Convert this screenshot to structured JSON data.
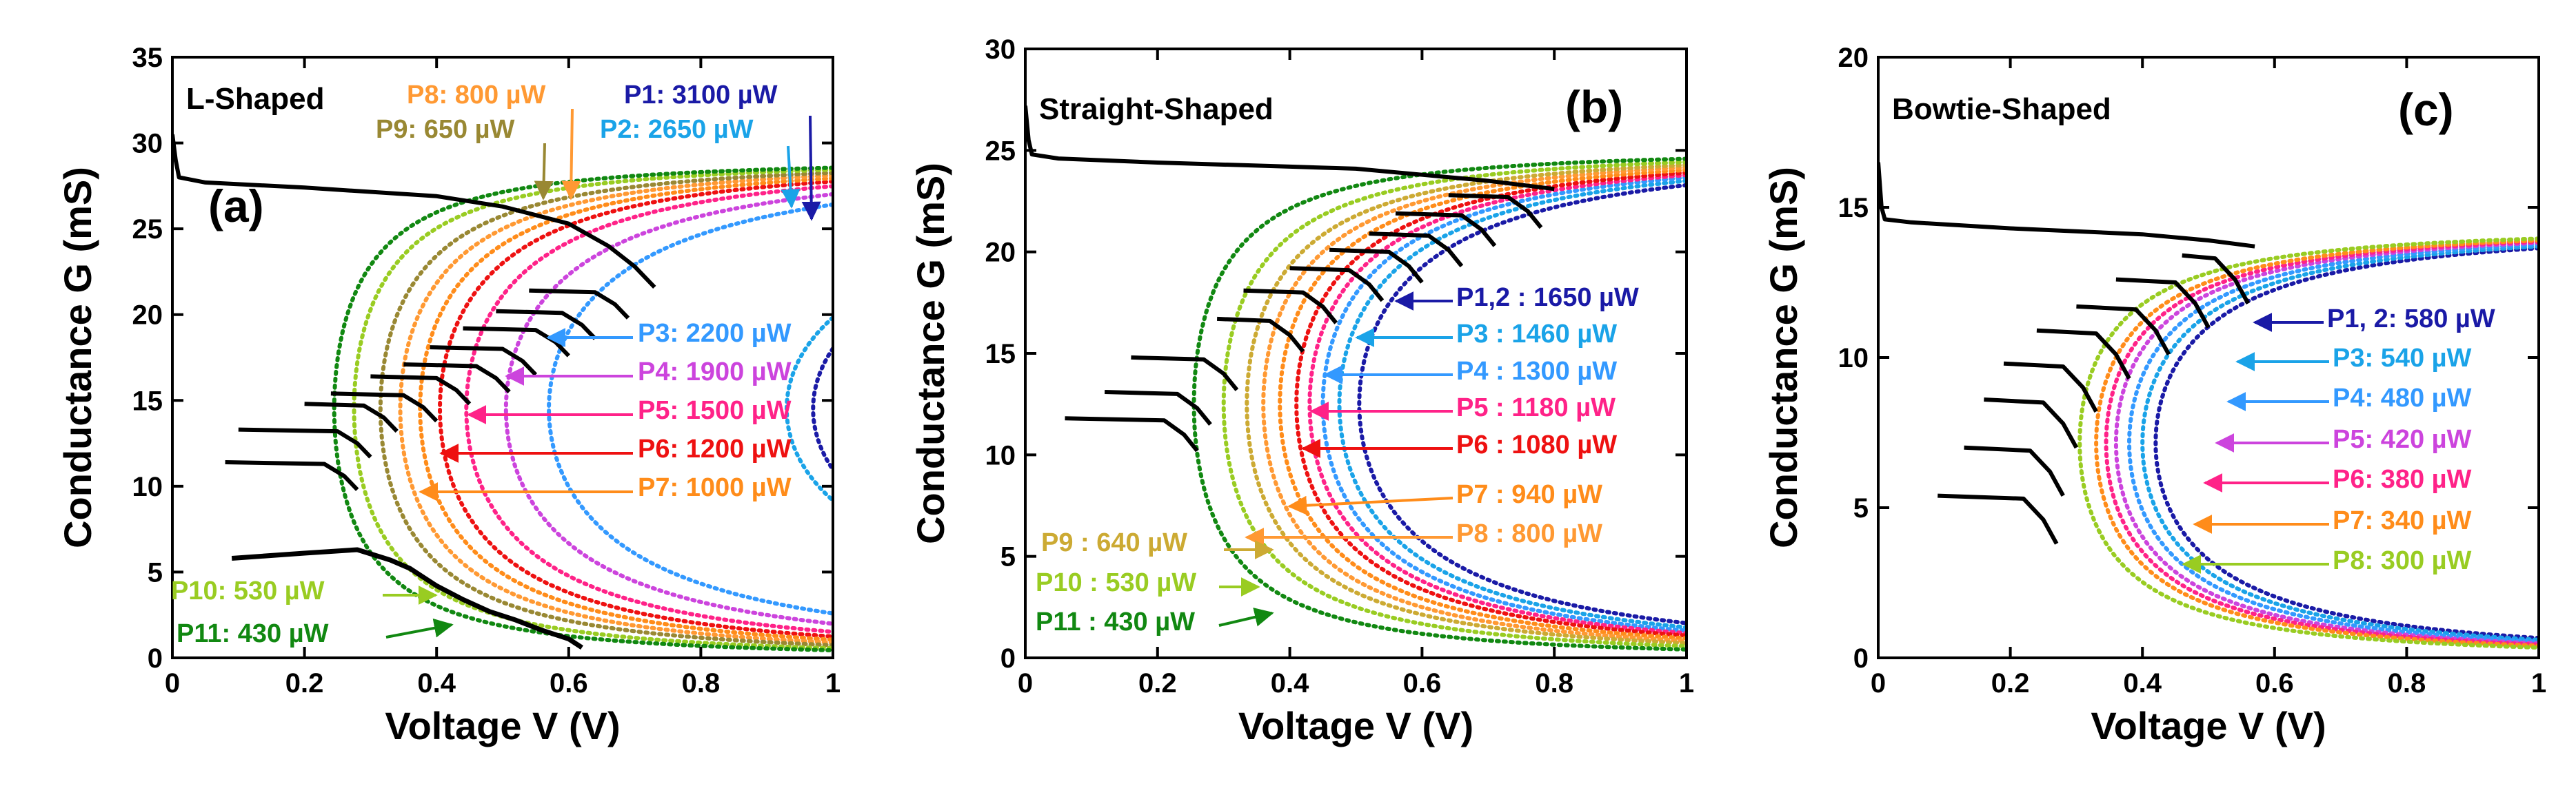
{
  "chart_data": [
    {
      "type": "line",
      "panel_label": "(a)",
      "title": "L-Shaped",
      "xlabel": "Voltage V (V)",
      "ylabel": "Conductance G (mS)",
      "xlim": [
        0,
        1
      ],
      "ylim": [
        0,
        35
      ],
      "xticks": [
        0,
        0.2,
        0.4,
        0.6,
        0.8,
        1
      ],
      "xtick_labels": [
        "0",
        "0.2",
        "0.4",
        "0.6",
        "0.8",
        "1"
      ],
      "yticks": [
        0,
        5,
        10,
        15,
        20,
        25,
        30,
        35
      ],
      "ytick_labels": [
        "0",
        "5",
        "10",
        "15",
        "20",
        "25",
        "30",
        "35"
      ],
      "gmax": 29,
      "series": [
        {
          "name": "P1",
          "label": "P1:  3100 µW",
          "color": "#1a1aa6",
          "vmin": 0.97
        },
        {
          "name": "P2",
          "label": "P2:  2650 µW",
          "color": "#1aa3e8",
          "vmin": 0.93
        },
        {
          "name": "P3",
          "label": "P3:  2200 µW",
          "color": "#3399ff",
          "vmin": 0.57
        },
        {
          "name": "P4",
          "label": "P4:  1900 µW",
          "color": "#cc44dd",
          "vmin": 0.505
        },
        {
          "name": "P5",
          "label": "P5:  1500 µW",
          "color": "#ff2288",
          "vmin": 0.445
        },
        {
          "name": "P6",
          "label": "P6:  1200 µW",
          "color": "#ee1111",
          "vmin": 0.405
        },
        {
          "name": "P7",
          "label": "P7:  1000 µW",
          "color": "#ff8c1a",
          "vmin": 0.375
        },
        {
          "name": "P8",
          "label": "P8:  800 µW",
          "color": "#ff9933",
          "vmin": 0.345
        },
        {
          "name": "P9",
          "label": "P9:  650 µW",
          "color": "#998833",
          "vmin": 0.315
        },
        {
          "name": "P10",
          "label": "P10:  530 µW",
          "color": "#99cc22",
          "vmin": 0.275
        },
        {
          "name": "P11",
          "label": "P11:  430 µW",
          "color": "#118811",
          "vmin": 0.245
        }
      ],
      "measured": {
        "name": "measured sweep",
        "color": "#000000",
        "points": [
          [
            0,
            30.5
          ],
          [
            0.005,
            29
          ],
          [
            0.01,
            28
          ],
          [
            0.05,
            27.7
          ],
          [
            0.2,
            27.4
          ],
          [
            0.4,
            26.9
          ],
          [
            0.5,
            26.3
          ],
          [
            0.6,
            25.3
          ],
          [
            0.66,
            24
          ],
          [
            0.7,
            22.8
          ],
          [
            0.73,
            21.6
          ]
        ],
        "steps": [
          {
            "g": 21.4,
            "x0": 0.54,
            "x1": 0.69
          },
          {
            "g": 20.2,
            "x0": 0.49,
            "x1": 0.64
          },
          {
            "g": 19.2,
            "x0": 0.44,
            "x1": 0.6
          },
          {
            "g": 18.1,
            "x0": 0.39,
            "x1": 0.55
          },
          {
            "g": 17.1,
            "x0": 0.35,
            "x1": 0.51
          },
          {
            "g": 16.4,
            "x0": 0.3,
            "x1": 0.45
          },
          {
            "g": 15.4,
            "x0": 0.24,
            "x1": 0.4
          },
          {
            "g": 14.8,
            "x0": 0.2,
            "x1": 0.34
          },
          {
            "g": 13.3,
            "x0": 0.1,
            "x1": 0.3
          },
          {
            "g": 11.4,
            "x0": 0.08,
            "x1": 0.28
          }
        ],
        "tail": [
          [
            0.09,
            5.8
          ],
          [
            0.2,
            6.1
          ],
          [
            0.28,
            6.3
          ],
          [
            0.33,
            5.7
          ],
          [
            0.36,
            5.2
          ],
          [
            0.38,
            4.7
          ],
          [
            0.4,
            4.2
          ],
          [
            0.44,
            3.4
          ],
          [
            0.48,
            2.7
          ],
          [
            0.52,
            2.2
          ],
          [
            0.56,
            1.6
          ],
          [
            0.6,
            1.1
          ],
          [
            0.62,
            0.6
          ]
        ]
      },
      "annotations": [
        {
          "text": "P8:  800 µW",
          "color": "#ff9933",
          "series": "P8"
        },
        {
          "text": "P9:  650 µW",
          "color": "#998833",
          "series": "P9"
        },
        {
          "text": "P1:  3100 µW",
          "color": "#1a1aa6",
          "series": "P1"
        },
        {
          "text": "P2:  2650 µW",
          "color": "#1aa3e8",
          "series": "P2"
        },
        {
          "text": "P3:  2200 µW",
          "color": "#3399ff",
          "series": "P3"
        },
        {
          "text": "P4:  1900 µW",
          "color": "#cc44dd",
          "series": "P4"
        },
        {
          "text": "P5:  1500 µW",
          "color": "#ff2288",
          "series": "P5"
        },
        {
          "text": "P6:  1200 µW",
          "color": "#ee1111",
          "series": "P6"
        },
        {
          "text": "P7:  1000 µW",
          "color": "#ff8c1a",
          "series": "P7"
        },
        {
          "text": "P10:  530 µW",
          "color": "#99cc22",
          "series": "P10"
        },
        {
          "text": "P11:  430 µW",
          "color": "#118811",
          "series": "P11"
        }
      ]
    },
    {
      "type": "line",
      "panel_label": "(b)",
      "title": "Straight-Shaped",
      "xlabel": "Voltage V (V)",
      "ylabel": "Conductance G (mS)",
      "xlim": [
        0,
        1
      ],
      "ylim": [
        0,
        30
      ],
      "xticks": [
        0,
        0.2,
        0.4,
        0.6,
        0.8,
        1
      ],
      "xtick_labels": [
        "0",
        "0.2",
        "0.4",
        "0.6",
        "0.8",
        "1"
      ],
      "yticks": [
        0,
        5,
        10,
        15,
        20,
        25,
        30
      ],
      "ytick_labels": [
        "0",
        "5",
        "10",
        "15",
        "20",
        "25",
        "30"
      ],
      "gmax": 25,
      "series": [
        {
          "name": "P1,2",
          "label": "P1,2 : 1650 µW",
          "color": "#1a1aa6",
          "vmin": 0.505
        },
        {
          "name": "P3",
          "label": "P3 : 1460 µW",
          "color": "#1aa3e8",
          "vmin": 0.475
        },
        {
          "name": "P4",
          "label": "P4 : 1300 µW",
          "color": "#3399ff",
          "vmin": 0.45
        },
        {
          "name": "P5",
          "label": "P5 : 1180 µW",
          "color": "#ff2288",
          "vmin": 0.43
        },
        {
          "name": "P6",
          "label": "P6 : 1080 µW",
          "color": "#ee1111",
          "vmin": 0.41
        },
        {
          "name": "P7",
          "label": "P7 : 940 µW",
          "color": "#ff8c1a",
          "vmin": 0.385
        },
        {
          "name": "P8",
          "label": "P8 : 800 µW",
          "color": "#ff9933",
          "vmin": 0.36
        },
        {
          "name": "P9",
          "label": "P9 : 640 µW",
          "color": "#ccaa33",
          "vmin": 0.335
        },
        {
          "name": "P10",
          "label": "P10 : 530 µW",
          "color": "#99cc22",
          "vmin": 0.3
        },
        {
          "name": "P11",
          "label": "P11 : 430 µW",
          "color": "#118811",
          "vmin": 0.255
        }
      ],
      "measured": {
        "name": "measured sweep",
        "color": "#000000",
        "points": [
          [
            0,
            27.2
          ],
          [
            0.005,
            25.5
          ],
          [
            0.01,
            24.8
          ],
          [
            0.05,
            24.6
          ],
          [
            0.2,
            24.4
          ],
          [
            0.4,
            24.2
          ],
          [
            0.5,
            24.1
          ],
          [
            0.6,
            23.8
          ],
          [
            0.7,
            23.5
          ],
          [
            0.8,
            23.1
          ]
        ],
        "steps": [
          {
            "g": 22.8,
            "x0": 0.64,
            "x1": 0.78
          },
          {
            "g": 21.9,
            "x0": 0.56,
            "x1": 0.71
          },
          {
            "g": 20.9,
            "x0": 0.52,
            "x1": 0.66
          },
          {
            "g": 20.1,
            "x0": 0.46,
            "x1": 0.6
          },
          {
            "g": 19.2,
            "x0": 0.4,
            "x1": 0.54
          },
          {
            "g": 18.1,
            "x0": 0.33,
            "x1": 0.47
          },
          {
            "g": 16.7,
            "x0": 0.29,
            "x1": 0.42
          },
          {
            "g": 14.8,
            "x0": 0.16,
            "x1": 0.32
          },
          {
            "g": 13.1,
            "x0": 0.12,
            "x1": 0.28
          },
          {
            "g": 11.8,
            "x0": 0.06,
            "x1": 0.26
          }
        ],
        "tail": []
      },
      "annotations": [
        {
          "text": "P1,2 : 1650 µW",
          "color": "#1a1aa6",
          "series": "P1,2"
        },
        {
          "text": "P3 : 1460 µW",
          "color": "#1aa3e8",
          "series": "P3"
        },
        {
          "text": "P4 : 1300 µW",
          "color": "#3399ff",
          "series": "P4"
        },
        {
          "text": "P5 : 1180 µW",
          "color": "#ff2288",
          "series": "P5"
        },
        {
          "text": "P6 : 1080 µW",
          "color": "#ee1111",
          "series": "P6"
        },
        {
          "text": "P7 : 940 µW",
          "color": "#ff8c1a",
          "series": "P7"
        },
        {
          "text": "P8 : 800 µW",
          "color": "#ff9933",
          "series": "P8"
        },
        {
          "text": "P9 : 640 µW",
          "color": "#ccaa33",
          "series": "P9"
        },
        {
          "text": "P10 : 530 µW",
          "color": "#99cc22",
          "series": "P10"
        },
        {
          "text": "P11 : 430 µW",
          "color": "#118811",
          "series": "P11"
        }
      ]
    },
    {
      "type": "line",
      "panel_label": "(c)",
      "title": "Bowtie-Shaped",
      "xlabel": "Voltage V (V)",
      "ylabel": "Conductance G (mS)",
      "xlim": [
        0,
        1
      ],
      "ylim": [
        0,
        20
      ],
      "xticks": [
        0,
        0.2,
        0.4,
        0.6,
        0.8,
        1
      ],
      "xtick_labels": [
        "0",
        "0.2",
        "0.4",
        "0.6",
        "0.8",
        "1"
      ],
      "yticks": [
        0,
        5,
        10,
        15,
        20
      ],
      "ytick_labels": [
        "0",
        "5",
        "10",
        "15",
        "20"
      ],
      "gmax": 14.3,
      "series": [
        {
          "name": "P1, 2",
          "label": "P1, 2:  580 µW",
          "color": "#1a1aa6",
          "vmin": 0.42
        },
        {
          "name": "P3",
          "label": "P3:  540 µW",
          "color": "#1aa3e8",
          "vmin": 0.4
        },
        {
          "name": "P4",
          "label": "P4:  480 µW",
          "color": "#3399ff",
          "vmin": 0.38
        },
        {
          "name": "P5",
          "label": "P5:  420 µW",
          "color": "#cc44dd",
          "vmin": 0.36
        },
        {
          "name": "P6",
          "label": "P6:  380 µW",
          "color": "#ff2288",
          "vmin": 0.345
        },
        {
          "name": "P7",
          "label": "P7:  340 µW",
          "color": "#ff8c1a",
          "vmin": 0.33
        },
        {
          "name": "P8",
          "label": "P8:  300 µW",
          "color": "#99cc22",
          "vmin": 0.305
        }
      ],
      "measured": {
        "name": "measured sweep",
        "color": "#000000",
        "points": [
          [
            0,
            16.5
          ],
          [
            0.005,
            15
          ],
          [
            0.01,
            14.6
          ],
          [
            0.05,
            14.5
          ],
          [
            0.2,
            14.3
          ],
          [
            0.4,
            14.1
          ],
          [
            0.5,
            13.9
          ],
          [
            0.57,
            13.7
          ]
        ],
        "steps": [
          {
            "g": 13.4,
            "x0": 0.46,
            "x1": 0.56
          },
          {
            "g": 12.6,
            "x0": 0.36,
            "x1": 0.5
          },
          {
            "g": 11.7,
            "x0": 0.3,
            "x1": 0.44
          },
          {
            "g": 10.9,
            "x0": 0.24,
            "x1": 0.38
          },
          {
            "g": 9.8,
            "x0": 0.19,
            "x1": 0.33
          },
          {
            "g": 8.6,
            "x0": 0.16,
            "x1": 0.3
          },
          {
            "g": 7.0,
            "x0": 0.13,
            "x1": 0.28
          },
          {
            "g": 5.4,
            "x0": 0.09,
            "x1": 0.27
          }
        ],
        "tail": []
      },
      "annotations": [
        {
          "text": "P1, 2:  580 µW",
          "color": "#1a1aa6",
          "series": "P1, 2"
        },
        {
          "text": "P3:  540 µW",
          "color": "#1aa3e8",
          "series": "P3"
        },
        {
          "text": "P4:  480 µW",
          "color": "#3399ff",
          "series": "P4"
        },
        {
          "text": "P5:  420 µW",
          "color": "#cc44dd",
          "series": "P5"
        },
        {
          "text": "P6:  380 µW",
          "color": "#ff2288",
          "series": "P6"
        },
        {
          "text": "P7:  340 µW",
          "color": "#ff8c1a",
          "series": "P7"
        },
        {
          "text": "P8:  300 µW",
          "color": "#99cc22",
          "series": "P8"
        }
      ]
    }
  ]
}
